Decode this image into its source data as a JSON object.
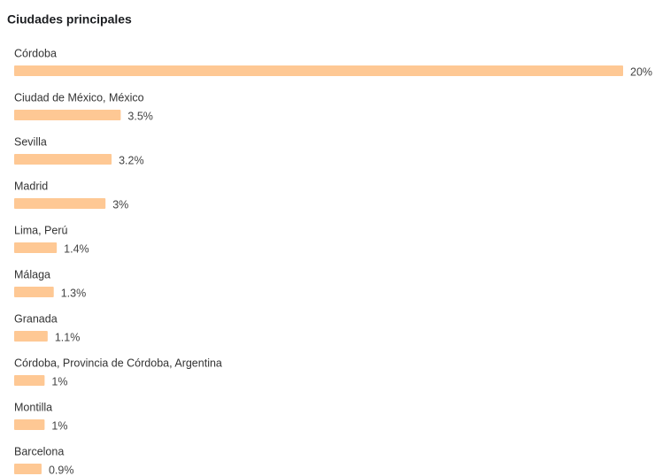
{
  "chart_data": {
    "type": "bar",
    "orientation": "horizontal",
    "title": "Ciudades principales",
    "categories": [
      "Córdoba",
      "Ciudad de México, México",
      "Sevilla",
      "Madrid",
      "Lima, Perú",
      "Málaga",
      "Granada",
      "Córdoba, Provincia de Córdoba, Argentina",
      "Montilla",
      "Barcelona"
    ],
    "values": [
      20,
      3.5,
      3.2,
      3,
      1.4,
      1.3,
      1.1,
      1,
      1,
      0.9
    ],
    "value_labels": [
      "20%",
      "3.5%",
      "3.2%",
      "3%",
      "1.4%",
      "1.3%",
      "1.1%",
      "1%",
      "1%",
      "0.9%"
    ],
    "color": "#fec894"
  }
}
